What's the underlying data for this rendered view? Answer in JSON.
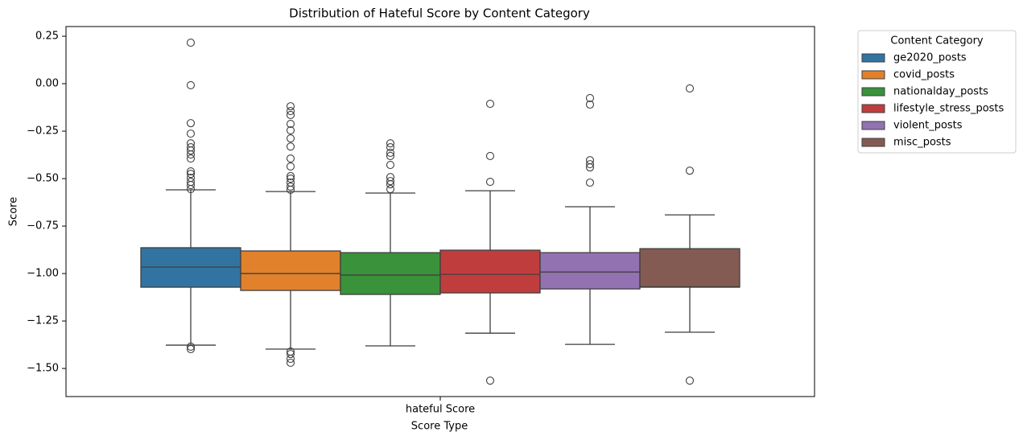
{
  "chart_data": {
    "type": "box",
    "title": "Distribution of Hateful Score by Content Category",
    "x_label": "Score Type",
    "y_label": "Score",
    "categories": [
      "hateful Score"
    ],
    "ylim": [
      -1.648,
      0.301
    ],
    "yticks": [
      0.25,
      {
        "value": 0,
        "label": "0.00"
      },
      {
        "value": -0.25,
        "label": "−0.25"
      },
      {
        "value": -0.5,
        "label": "−0.50"
      },
      {
        "value": -0.75,
        "label": "−0.75"
      },
      {
        "value": -1,
        "label": "−1.00"
      },
      {
        "value": -1.25,
        "label": "−1.25"
      },
      {
        "value": -1.5,
        "label": "−1.50"
      }
    ],
    "legend_title": "Content Category",
    "legend_position": "outside upper right",
    "series": [
      {
        "name": "ge2020_posts",
        "color": "#3274a1",
        "whislo": -1.377,
        "q1": -1.072,
        "med": -0.966,
        "q3": -0.864,
        "whishi": -0.559,
        "fliers": [
          0.216,
          -0.008,
          -0.208,
          -0.263,
          -0.314,
          -0.335,
          -0.352,
          -0.373,
          -0.394,
          -0.462,
          -0.475,
          -0.496,
          -0.517,
          -0.534,
          -0.555,
          -1.385,
          -1.398
        ]
      },
      {
        "name": "covid_posts",
        "color": "#e1812c",
        "whislo": -1.398,
        "q1": -1.089,
        "med": -1.0,
        "q3": -0.881,
        "whishi": -0.568,
        "fliers": [
          -0.119,
          -0.144,
          -0.165,
          -0.212,
          -0.246,
          -0.288,
          -0.331,
          -0.394,
          -0.436,
          -0.487,
          -0.5,
          -0.521,
          -0.542,
          -0.559,
          -1.411,
          -1.424,
          -1.449,
          -1.47
        ]
      },
      {
        "name": "nationalday_posts",
        "color": "#3a923a",
        "whislo": -1.381,
        "q1": -1.11,
        "med": -1.008,
        "q3": -0.89,
        "whishi": -0.576,
        "fliers": [
          -0.314,
          -0.335,
          -0.364,
          -0.381,
          -0.428,
          -0.492,
          -0.513,
          -0.53,
          -0.555
        ]
      },
      {
        "name": "lifestyle_stress_posts",
        "color": "#c03d3e",
        "whislo": -1.314,
        "q1": -1.102,
        "med": -1.004,
        "q3": -0.877,
        "whishi": -0.564,
        "fliers": [
          -0.106,
          -0.381,
          -0.517,
          -1.564
        ]
      },
      {
        "name": "violent_posts",
        "color": "#9372b2",
        "whislo": -1.373,
        "q1": -1.081,
        "med": -0.992,
        "q3": -0.89,
        "whishi": -0.648,
        "fliers": [
          -0.076,
          -0.11,
          -0.403,
          -0.424,
          -0.441,
          -0.521
        ]
      },
      {
        "name": "misc_posts",
        "color": "#845b53",
        "whislo": -1.309,
        "q1": -1.072,
        "med": -1.07,
        "q3": -0.869,
        "whishi": -0.691,
        "fliers": [
          -0.025,
          -0.458,
          -1.564
        ]
      }
    ]
  }
}
